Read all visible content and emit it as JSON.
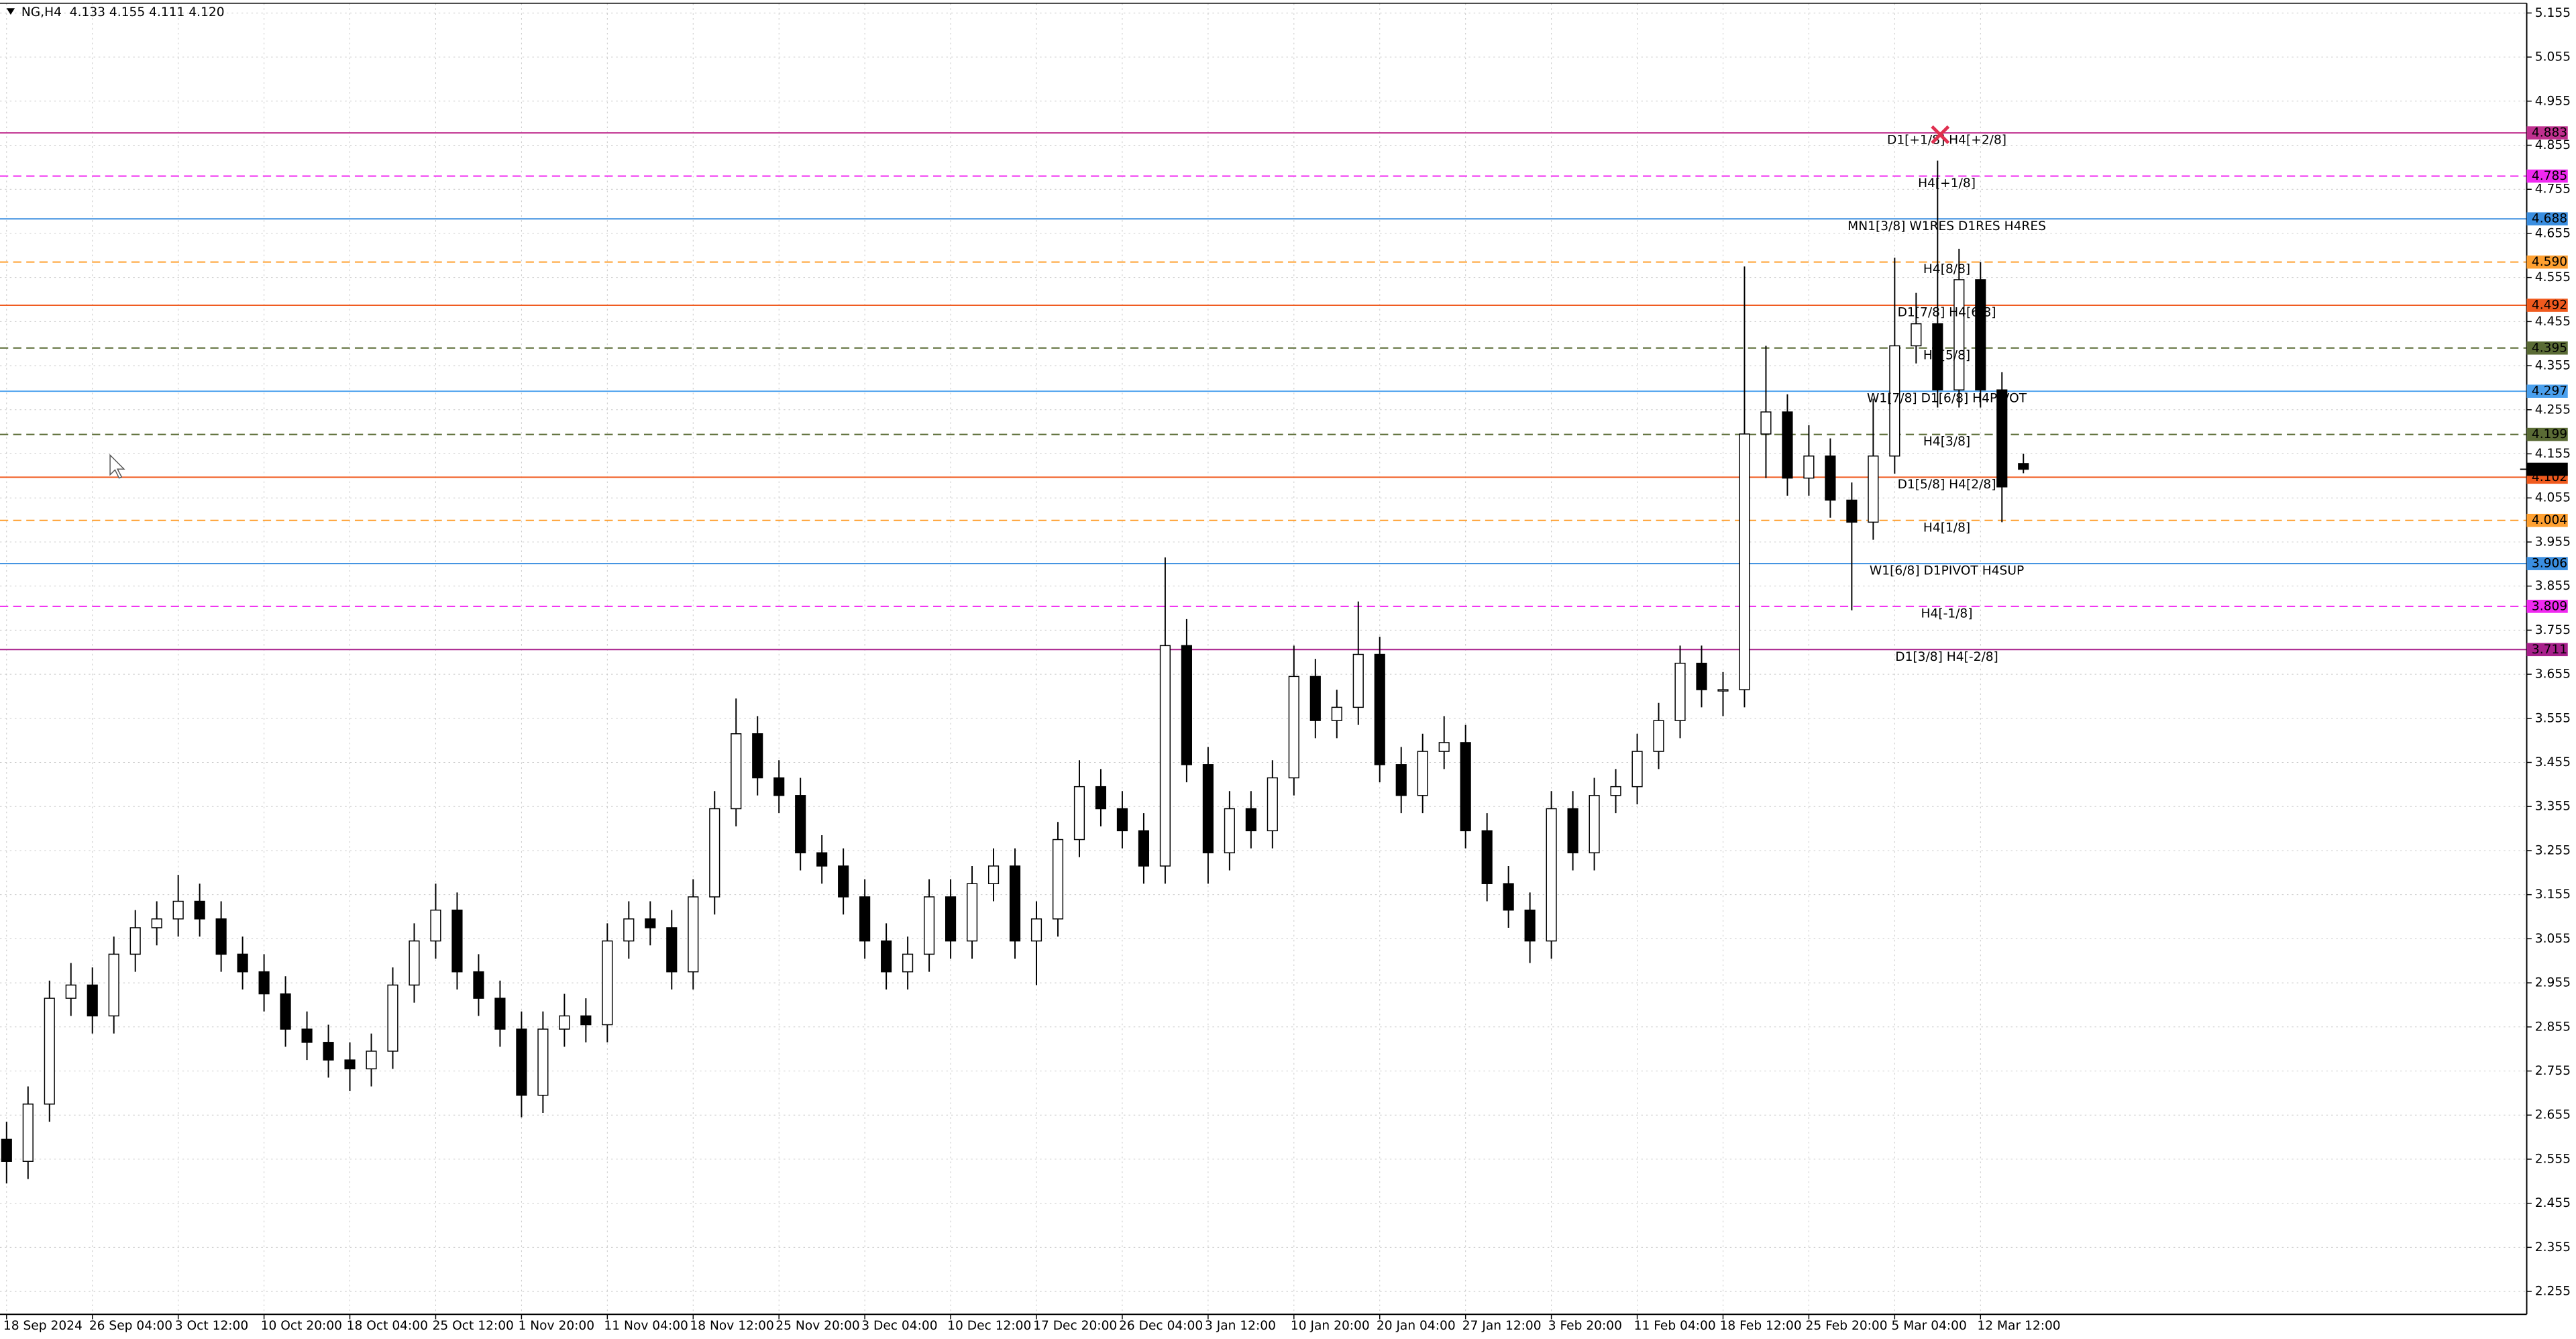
{
  "chart_data": {
    "type": "candlestick",
    "title": "NG,H4  4.133 4.155 4.111 4.120",
    "categories": [
      "18 Sep 2024",
      null,
      null,
      null,
      "26 Sep 04:00",
      null,
      null,
      null,
      "3 Oct 12:00",
      null,
      null,
      null,
      "10 Oct 20:00",
      null,
      null,
      null,
      "18 Oct 04:00",
      null,
      null,
      null,
      "25 Oct 12:00",
      null,
      null,
      null,
      "1 Nov 20:00",
      null,
      null,
      null,
      "11 Nov 04:00",
      null,
      null,
      null,
      "18 Nov 12:00",
      null,
      null,
      null,
      "25 Nov 20:00",
      null,
      null,
      null,
      "3 Dec 04:00",
      null,
      null,
      null,
      "10 Dec 12:00",
      null,
      null,
      null,
      "17 Dec 20:00",
      null,
      null,
      null,
      "26 Dec 04:00",
      null,
      null,
      null,
      "3 Jan 12:00",
      null,
      null,
      null,
      "10 Jan 20:00",
      null,
      null,
      null,
      "20 Jan 04:00",
      null,
      null,
      null,
      "27 Jan 12:00",
      null,
      null,
      null,
      "3 Feb 20:00",
      null,
      null,
      null,
      "11 Feb 04:00",
      null,
      null,
      null,
      "18 Feb 12:00",
      null,
      null,
      null,
      "25 Feb 20:00",
      null,
      null,
      null,
      "5 Mar 04:00",
      null,
      null,
      null,
      "12 Mar 12:00",
      null,
      null
    ],
    "open": [
      2.6,
      2.55,
      2.68,
      2.92,
      2.95,
      2.88,
      3.02,
      3.08,
      3.1,
      3.14,
      3.1,
      3.02,
      2.98,
      2.93,
      2.85,
      2.82,
      2.78,
      2.76,
      2.8,
      2.95,
      3.05,
      3.12,
      2.98,
      2.92,
      2.85,
      2.7,
      2.85,
      2.88,
      2.86,
      3.05,
      3.1,
      3.08,
      2.98,
      3.15,
      3.35,
      3.52,
      3.42,
      3.38,
      3.25,
      3.22,
      3.15,
      3.05,
      2.98,
      3.02,
      3.15,
      3.05,
      3.18,
      3.22,
      3.05,
      3.1,
      3.28,
      3.4,
      3.35,
      3.3,
      3.22,
      3.72,
      3.45,
      3.25,
      3.35,
      3.3,
      3.42,
      3.65,
      3.55,
      3.58,
      3.7,
      3.45,
      3.38,
      3.48,
      3.5,
      3.3,
      3.18,
      3.12,
      3.05,
      3.35,
      3.25,
      3.38,
      3.4,
      3.48,
      3.55,
      3.68,
      3.62,
      3.62,
      4.2,
      4.25,
      4.1,
      4.15,
      4.05,
      4.0,
      4.15,
      4.4,
      4.45,
      4.3,
      4.55,
      4.3,
      4.133
    ],
    "high": [
      2.64,
      2.72,
      2.96,
      3.0,
      2.99,
      3.06,
      3.12,
      3.14,
      3.2,
      3.18,
      3.14,
      3.06,
      3.02,
      2.97,
      2.89,
      2.86,
      2.82,
      2.84,
      2.99,
      3.09,
      3.18,
      3.16,
      3.02,
      2.96,
      2.89,
      2.89,
      2.93,
      2.92,
      3.09,
      3.14,
      3.14,
      3.12,
      3.19,
      3.39,
      3.6,
      3.56,
      3.46,
      3.42,
      3.29,
      3.26,
      3.19,
      3.09,
      3.06,
      3.19,
      3.19,
      3.22,
      3.26,
      3.26,
      3.14,
      3.32,
      3.46,
      3.44,
      3.39,
      3.34,
      3.92,
      3.78,
      3.49,
      3.39,
      3.39,
      3.46,
      3.72,
      3.69,
      3.62,
      3.82,
      3.74,
      3.49,
      3.52,
      3.56,
      3.54,
      3.34,
      3.22,
      3.16,
      3.39,
      3.39,
      3.42,
      3.44,
      3.52,
      3.59,
      3.72,
      3.72,
      3.66,
      4.58,
      4.4,
      4.29,
      4.22,
      4.19,
      4.09,
      4.28,
      4.6,
      4.52,
      4.82,
      4.62,
      4.59,
      4.34,
      4.155
    ],
    "low": [
      2.5,
      2.51,
      2.64,
      2.88,
      2.84,
      2.84,
      2.98,
      3.04,
      3.06,
      3.06,
      2.98,
      2.94,
      2.89,
      2.81,
      2.78,
      2.74,
      2.71,
      2.72,
      2.76,
      2.91,
      3.01,
      2.94,
      2.88,
      2.81,
      2.65,
      2.66,
      2.81,
      2.82,
      2.82,
      3.01,
      3.04,
      2.94,
      2.94,
      3.11,
      3.31,
      3.38,
      3.34,
      3.21,
      3.18,
      3.11,
      3.01,
      2.94,
      2.94,
      2.98,
      3.01,
      3.01,
      3.14,
      3.01,
      2.95,
      3.06,
      3.24,
      3.31,
      3.26,
      3.18,
      3.18,
      3.41,
      3.18,
      3.21,
      3.26,
      3.26,
      3.38,
      3.51,
      3.51,
      3.54,
      3.41,
      3.34,
      3.34,
      3.44,
      3.26,
      3.14,
      3.08,
      3.0,
      3.01,
      3.21,
      3.21,
      3.34,
      3.36,
      3.44,
      3.51,
      3.58,
      3.56,
      3.58,
      4.1,
      4.06,
      4.06,
      4.01,
      3.8,
      3.96,
      4.11,
      4.36,
      4.26,
      4.26,
      4.26,
      4.0,
      4.111
    ],
    "close": [
      2.55,
      2.68,
      2.92,
      2.95,
      2.88,
      3.02,
      3.08,
      3.1,
      3.14,
      3.1,
      3.02,
      2.98,
      2.93,
      2.85,
      2.82,
      2.78,
      2.76,
      2.8,
      2.95,
      3.05,
      3.12,
      2.98,
      2.92,
      2.85,
      2.7,
      2.85,
      2.88,
      2.86,
      3.05,
      3.1,
      3.08,
      2.98,
      3.15,
      3.35,
      3.52,
      3.42,
      3.38,
      3.25,
      3.22,
      3.15,
      3.05,
      2.98,
      3.02,
      3.15,
      3.05,
      3.18,
      3.22,
      3.05,
      3.1,
      3.28,
      3.4,
      3.35,
      3.3,
      3.22,
      3.72,
      3.45,
      3.25,
      3.35,
      3.3,
      3.42,
      3.65,
      3.55,
      3.58,
      3.7,
      3.45,
      3.38,
      3.48,
      3.5,
      3.3,
      3.18,
      3.12,
      3.05,
      3.35,
      3.25,
      3.38,
      3.4,
      3.48,
      3.55,
      3.68,
      3.62,
      3.62,
      4.2,
      4.25,
      4.1,
      4.15,
      4.05,
      4.0,
      4.15,
      4.4,
      4.45,
      4.3,
      4.55,
      4.3,
      4.08,
      4.12
    ],
    "up_color": "#ffffff",
    "down_color": "#000000",
    "wick_color": "#000000",
    "ylim": [
      2.203,
      5.177
    ],
    "yticks": [
      5.155,
      5.055,
      4.955,
      4.855,
      4.755,
      4.655,
      4.555,
      4.455,
      4.355,
      4.255,
      4.155,
      4.055,
      3.955,
      3.855,
      3.755,
      3.655,
      3.555,
      3.455,
      3.355,
      3.255,
      3.155,
      3.055,
      2.955,
      2.855,
      2.755,
      2.655,
      2.555,
      2.455,
      2.355,
      2.255
    ],
    "grid": true,
    "levels": {
      "labels": [
        "D1[+1/8] H4[+2/8]",
        "H4[+1/8]",
        "MN1[3/8] W1RES D1RES H4RES",
        "H4[8/8]",
        "D1[7/8] H4[6/8]",
        "H4[5/8]",
        "W1[7/8] D1[6/8] H4PIVOT",
        "H4[3/8]",
        "D1[5/8] H4[2/8]",
        "H4[1/8]",
        "W1[6/8] D1PIVOT H4SUP",
        "H4[-1/8]",
        "D1[3/8] H4[-2/8]"
      ],
      "values": [
        4.883,
        4.785,
        4.688,
        4.59,
        4.492,
        4.395,
        4.297,
        4.199,
        4.102,
        4.004,
        3.906,
        3.809,
        3.711
      ],
      "value_labels": [
        "4.883",
        "4.785",
        "4.688",
        "4.590",
        "4.492",
        "4.395",
        "4.297",
        "4.199",
        "4.102",
        "4.004",
        "3.906",
        "3.809",
        "3.711"
      ],
      "colors": [
        "#c0308f",
        "#f028f0",
        "#3a8ee0",
        "#ffa030",
        "#f05a1e",
        "#5a6b35",
        "#4aa0ee",
        "#5a6b35",
        "#f05a1e",
        "#ffa030",
        "#3a8ee0",
        "#f028f0",
        "#a8208c"
      ],
      "dashed": [
        false,
        true,
        false,
        true,
        false,
        true,
        false,
        true,
        false,
        true,
        false,
        true,
        false
      ]
    },
    "last_price": {
      "value": 4.12,
      "label": "4.120"
    }
  }
}
